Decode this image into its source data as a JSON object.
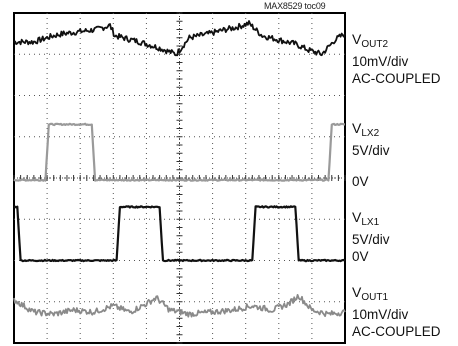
{
  "figure_id": "MAX8529 toc09",
  "chart_data": {
    "type": "line",
    "title": "",
    "xlabel": "",
    "ylabel": "",
    "grid": true,
    "divisions": {
      "x": 10,
      "y": 8
    },
    "xlim": [
      0,
      10
    ],
    "ylim": [
      0,
      8
    ],
    "series": [
      {
        "name": "VOUT2",
        "scale": "10mV/div",
        "coupling": "AC-COUPLED",
        "color": "#111111",
        "x": [
          0,
          0.6,
          1.2,
          1.5,
          2.0,
          2.5,
          2.9,
          3.05,
          3.3,
          3.8,
          4.4,
          4.9,
          5.3,
          5.9,
          6.4,
          6.7,
          7.1,
          7.5,
          8.0,
          8.5,
          8.9,
          9.3,
          9.7,
          10
        ],
        "y": [
          7.3,
          7.3,
          7.45,
          7.5,
          7.55,
          7.6,
          7.7,
          7.45,
          7.4,
          7.3,
          7.15,
          7.0,
          7.4,
          7.5,
          7.6,
          7.65,
          7.75,
          7.45,
          7.35,
          7.25,
          7.1,
          7.0,
          7.35,
          7.5
        ]
      },
      {
        "name": "VLX2",
        "scale": "5V/div",
        "ground_label": "0V",
        "color": "#9a9a9a",
        "x": [
          0,
          0.95,
          1.05,
          2.35,
          2.45,
          9.5,
          9.6,
          10
        ],
        "y": [
          3.95,
          3.95,
          5.3,
          5.3,
          3.95,
          3.95,
          5.3,
          5.3
        ]
      },
      {
        "name": "VLX1",
        "scale": "5V/div",
        "ground_label": "0V",
        "color": "#111111",
        "x": [
          0,
          0.1,
          0.2,
          3.1,
          3.2,
          4.4,
          4.5,
          7.2,
          7.3,
          8.5,
          8.6,
          10
        ],
        "y": [
          3.3,
          3.3,
          2.0,
          2.0,
          3.3,
          3.3,
          2.0,
          2.0,
          3.3,
          3.3,
          2.0,
          2.0
        ]
      },
      {
        "name": "VOUT1",
        "scale": "10mV/div",
        "coupling": "AC-COUPLED",
        "color": "#8a8a8a",
        "x": [
          0,
          0.6,
          1.2,
          1.8,
          2.4,
          3.0,
          3.5,
          4.0,
          4.3,
          4.7,
          5.3,
          6.0,
          6.6,
          7.2,
          7.8,
          8.3,
          8.6,
          9.0,
          9.5,
          10
        ],
        "y": [
          1.05,
          0.75,
          0.7,
          0.8,
          0.75,
          0.9,
          0.75,
          0.95,
          1.1,
          0.8,
          0.7,
          0.75,
          0.8,
          0.9,
          0.8,
          0.95,
          1.15,
          0.8,
          0.7,
          0.75
        ]
      }
    ]
  }
}
